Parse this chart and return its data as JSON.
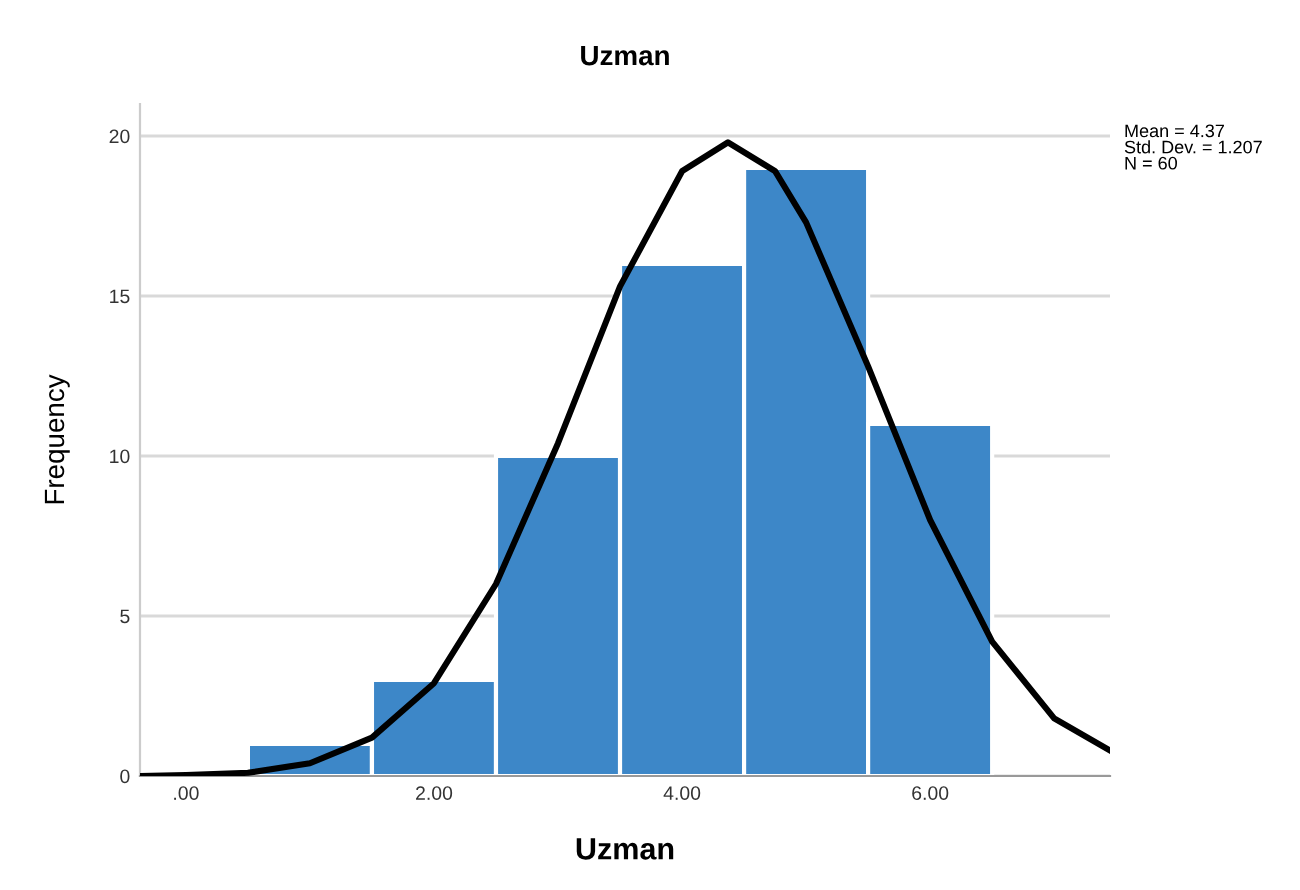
{
  "chart_data": {
    "type": "histogram",
    "title": "Uzman",
    "xlabel": "Uzman",
    "ylabel": "Frequency",
    "bins": [
      0.5,
      1.5,
      2.5,
      3.5,
      4.5,
      5.5,
      6.5
    ],
    "series": [
      {
        "color": "#3d87c8",
        "values": [
          1,
          3,
          10,
          16,
          19,
          11
        ]
      },
      {
        "type": "line",
        "color": "#000000",
        "x": [
          -0.37,
          0,
          0.5,
          1,
          1.5,
          2,
          2.5,
          3,
          3.5,
          4,
          4.37,
          4.75,
          5,
          5.5,
          6,
          6.5,
          7,
          7.45
        ],
        "values": [
          0,
          0.03,
          0.1,
          0.4,
          1.2,
          2.9,
          6,
          10.4,
          15.3,
          18.9,
          19.8,
          18.9,
          17.3,
          12.8,
          8,
          4.2,
          1.8,
          0.8
        ]
      }
    ],
    "xlim": [
      -0.37,
      7.45
    ],
    "xticks": [
      {
        "value": 0,
        "label": ".00"
      },
      {
        "value": 2,
        "label": "2.00"
      },
      {
        "value": 4,
        "label": "4.00"
      },
      {
        "value": 6,
        "label": "6.00"
      }
    ],
    "ylim": [
      0,
      21
    ],
    "yticks": [
      0,
      5,
      10,
      15,
      20
    ],
    "grid": "y",
    "line_style": "solid",
    "marker": "none",
    "annotations": [
      "Mean = 4.37\nStd. Dev. = 1.207\nN = 60"
    ]
  }
}
